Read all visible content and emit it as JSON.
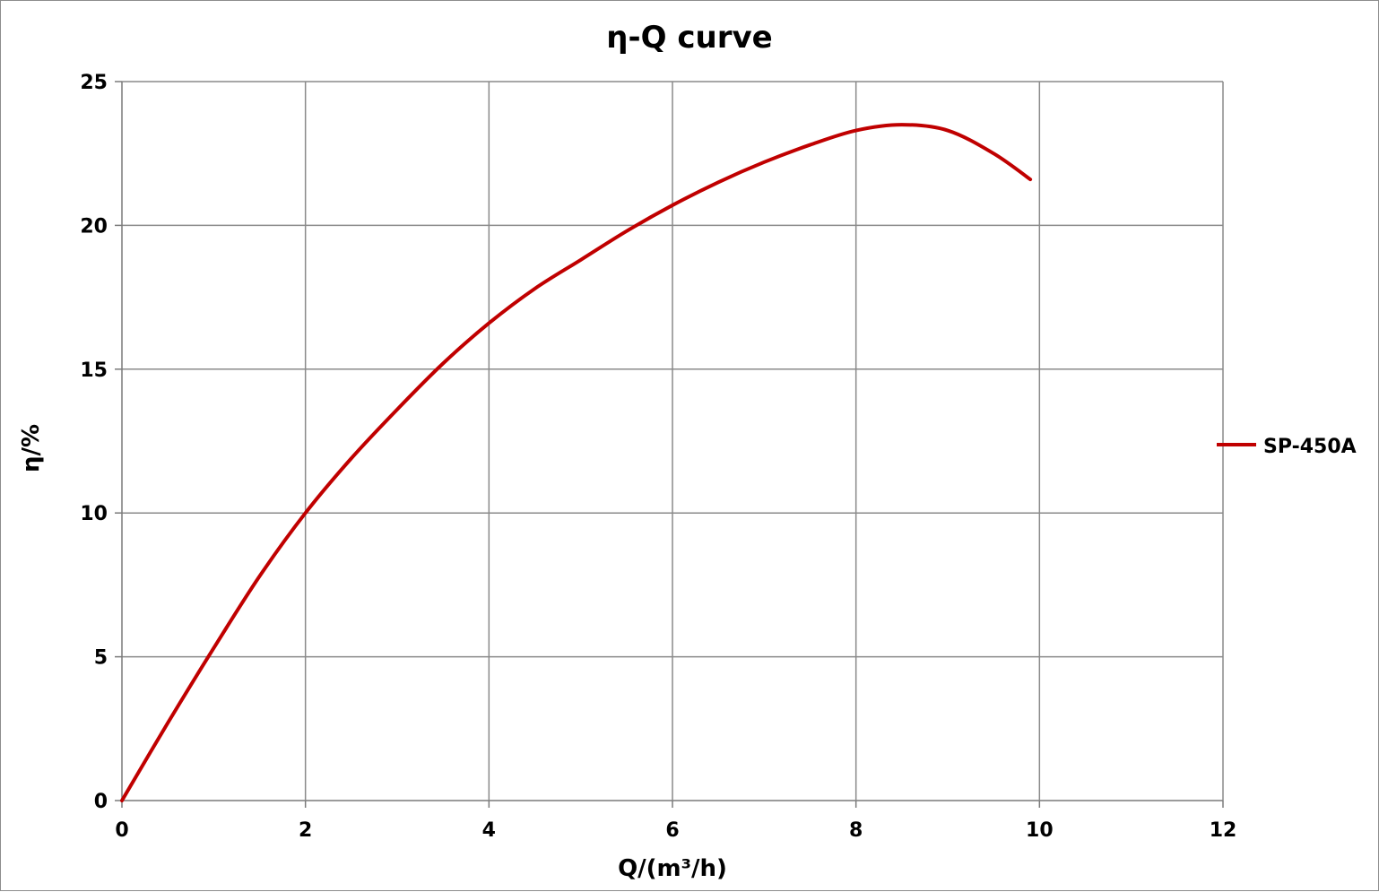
{
  "chart_data": {
    "type": "line",
    "title": "η-Q  curve",
    "xlabel": "Q/(m³/h)",
    "ylabel": "η/%",
    "xlim": [
      0,
      12
    ],
    "ylim": [
      0,
      25
    ],
    "x_ticks": [
      0,
      2,
      4,
      6,
      8,
      10,
      12
    ],
    "y_ticks": [
      0,
      5,
      10,
      15,
      20,
      25
    ],
    "grid": true,
    "legend_position": "right",
    "series": [
      {
        "name": "SP-450A",
        "color": "#c00000",
        "x": [
          0,
          0.5,
          1,
          1.5,
          2,
          2.5,
          3,
          3.5,
          4,
          4.5,
          5,
          5.5,
          6,
          6.5,
          7,
          7.5,
          8,
          8.5,
          9,
          9.5,
          9.9
        ],
        "y": [
          0,
          2.7,
          5.3,
          7.8,
          10.0,
          11.9,
          13.6,
          15.2,
          16.6,
          17.8,
          18.8,
          19.8,
          20.7,
          21.5,
          22.2,
          22.8,
          23.3,
          23.5,
          23.3,
          22.5,
          21.6
        ]
      }
    ]
  }
}
